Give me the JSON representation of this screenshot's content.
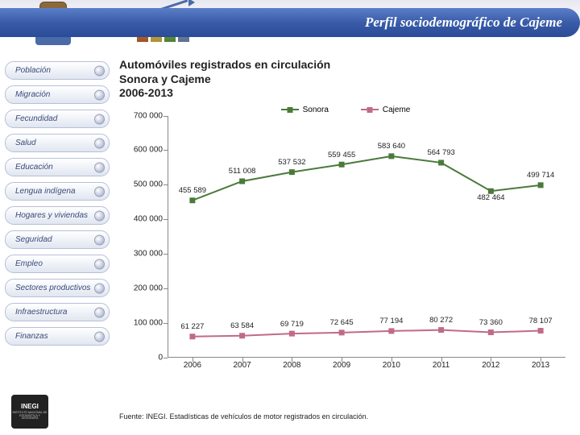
{
  "header": {
    "title": "Perfil sociodemográfico de Cajeme"
  },
  "sidebar": {
    "items": [
      {
        "label": "Población"
      },
      {
        "label": "Migración"
      },
      {
        "label": "Fecundidad"
      },
      {
        "label": "Salud"
      },
      {
        "label": "Educación"
      },
      {
        "label": "Lengua indígena"
      },
      {
        "label": "Hogares y viviendas"
      },
      {
        "label": "Seguridad"
      },
      {
        "label": "Empleo"
      },
      {
        "label": "Sectores productivos"
      },
      {
        "label": "Infraestructura"
      },
      {
        "label": "Finanzas"
      }
    ]
  },
  "chart": {
    "type": "line",
    "title_line1": "Automóviles registrados en circulación",
    "title_line2": "Sonora y Cajeme",
    "title_line3": "2006-2013",
    "title_fontsize": 14,
    "label_fontsize": 10,
    "datalabel_fontsize": 9.5,
    "background_color": "#ffffff",
    "axis_color": "#888888",
    "ylim": [
      0,
      700000
    ],
    "ytick_step": 100000,
    "yticks": [
      "0",
      "100 000",
      "200 000",
      "300 000",
      "400 000",
      "500 000",
      "600 000",
      "700 000"
    ],
    "categories": [
      "2006",
      "2007",
      "2008",
      "2009",
      "2010",
      "2011",
      "2012",
      "2013"
    ],
    "legend_position": "top-center",
    "series": [
      {
        "name": "Sonora",
        "color": "#4a7a3a",
        "marker_color": "#4a7a3a",
        "marker": "square",
        "line_width": 2,
        "values": [
          455589,
          511008,
          537532,
          559455,
          583640,
          564793,
          482464,
          499714
        ],
        "labels": [
          "455 589",
          "511 008",
          "537 532",
          "559 455",
          "583 640",
          "564 793",
          "482 464",
          "499 714"
        ]
      },
      {
        "name": "Cajeme",
        "color": "#c06a8a",
        "marker_color": "#c06a8a",
        "marker": "square",
        "line_width": 2,
        "values": [
          61227,
          63584,
          69719,
          72645,
          77194,
          80272,
          73360,
          78107
        ],
        "labels": [
          "61 227",
          "63 584",
          "69 719",
          "72 645",
          "77 194",
          "80 272",
          "73 360",
          "78 107"
        ]
      }
    ]
  },
  "source": "Fuente: INEGI. Estadísticas de vehículos de motor registrados en circulación.",
  "footer": {
    "logo_text": "INEGI",
    "logo_sub": "INSTITUTO NACIONAL DE ESTADÍSTICA Y GEOGRAFÍA"
  }
}
